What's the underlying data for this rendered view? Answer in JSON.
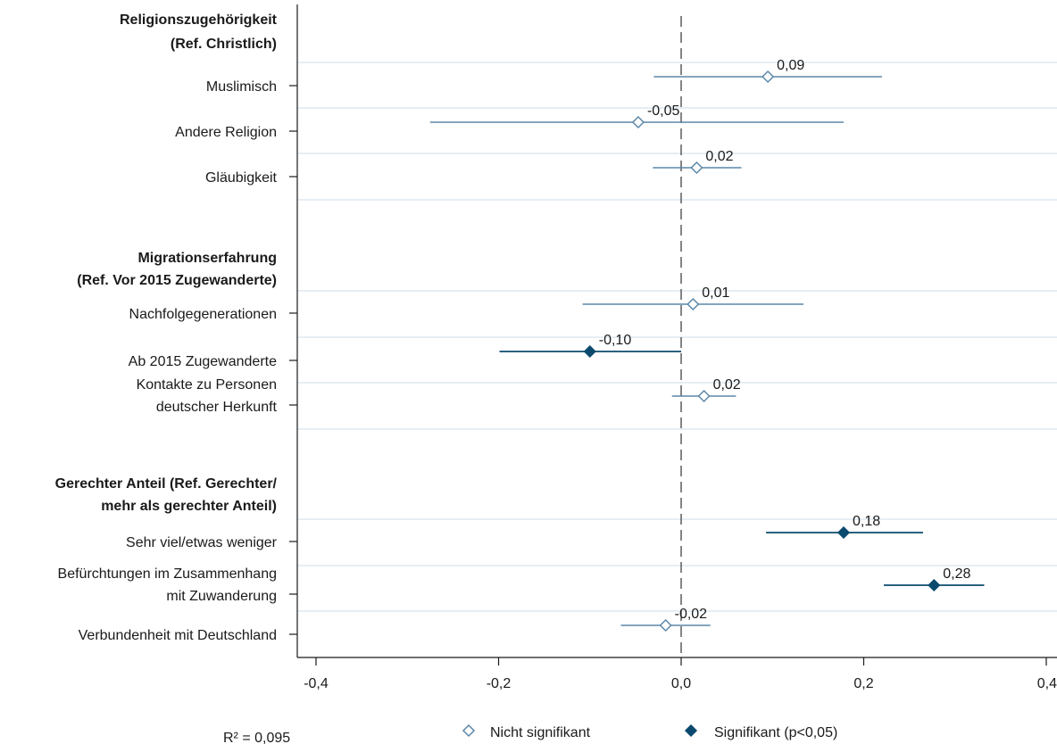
{
  "chart_data": {
    "type": "scatter",
    "xlim": [
      -0.4,
      0.4
    ],
    "x_ticks": [
      "-0,4",
      "-0,2",
      "0,0",
      "0,2",
      "0,4"
    ],
    "x_tick_values": [
      -0.4,
      -0.2,
      0.0,
      0.2,
      0.4
    ],
    "reference_line": 0,
    "grid": true,
    "legend_position": "bottom",
    "legend": {
      "nonsig": "Nicht signifikant",
      "sig": "Signifikant (p<0,05)"
    },
    "r2_text": "R² = 0,095",
    "colors": {
      "nonsig": "#5b87a8",
      "sig": "#0b4a6e",
      "grid": "#e6eef4",
      "refline": "#333333"
    },
    "groups": [
      {
        "header": [
          "Religionszugehörigkeit",
          "(Ref. Christlich)"
        ],
        "items": [
          {
            "label": [
              "Muslimisch"
            ],
            "value": 0.095,
            "value_label": "0,09",
            "ci": [
              -0.03,
              0.22
            ],
            "significant": false
          },
          {
            "label": [
              "Andere Religion"
            ],
            "value": -0.047,
            "value_label": "-0,05",
            "ci": [
              -0.275,
              0.178
            ],
            "significant": false
          },
          {
            "label": [
              "Gläubigkeit"
            ],
            "value": 0.017,
            "value_label": "0,02",
            "ci": [
              -0.031,
              0.066
            ],
            "significant": false
          }
        ]
      },
      {
        "header": [
          "Migrationserfahrung",
          "(Ref. Vor 2015 Zugewanderte)"
        ],
        "items": [
          {
            "label": [
              "Nachfolgegenerationen"
            ],
            "value": 0.013,
            "value_label": "0,01",
            "ci": [
              -0.108,
              0.134
            ],
            "significant": false
          },
          {
            "label": [
              "Ab 2015 Zugewanderte"
            ],
            "value": -0.1,
            "value_label": "-0,10",
            "ci": [
              -0.199,
              0.0
            ],
            "significant": true
          },
          {
            "label": [
              "Kontakte zu Personen",
              "deutscher Herkunft"
            ],
            "value": 0.025,
            "value_label": "0,02",
            "ci": [
              -0.01,
              0.06
            ],
            "significant": false
          }
        ]
      },
      {
        "header": [
          "Gerechter Anteil (Ref. Gerechter/",
          "mehr als gerechter Anteil)"
        ],
        "items": [
          {
            "label": [
              "Sehr viel/etwas weniger"
            ],
            "value": 0.178,
            "value_label": "0,18",
            "ci": [
              0.093,
              0.265
            ],
            "significant": true
          },
          {
            "label": [
              "Befürchtungen im Zusammenhang",
              "mit Zuwanderung"
            ],
            "value": 0.277,
            "value_label": "0,28",
            "ci": [
              0.222,
              0.332
            ],
            "significant": true
          },
          {
            "label": [
              "Verbundenheit mit Deutschland"
            ],
            "value": -0.017,
            "value_label": "-0,02",
            "ci": [
              -0.066,
              0.032
            ],
            "significant": false
          }
        ]
      }
    ]
  }
}
